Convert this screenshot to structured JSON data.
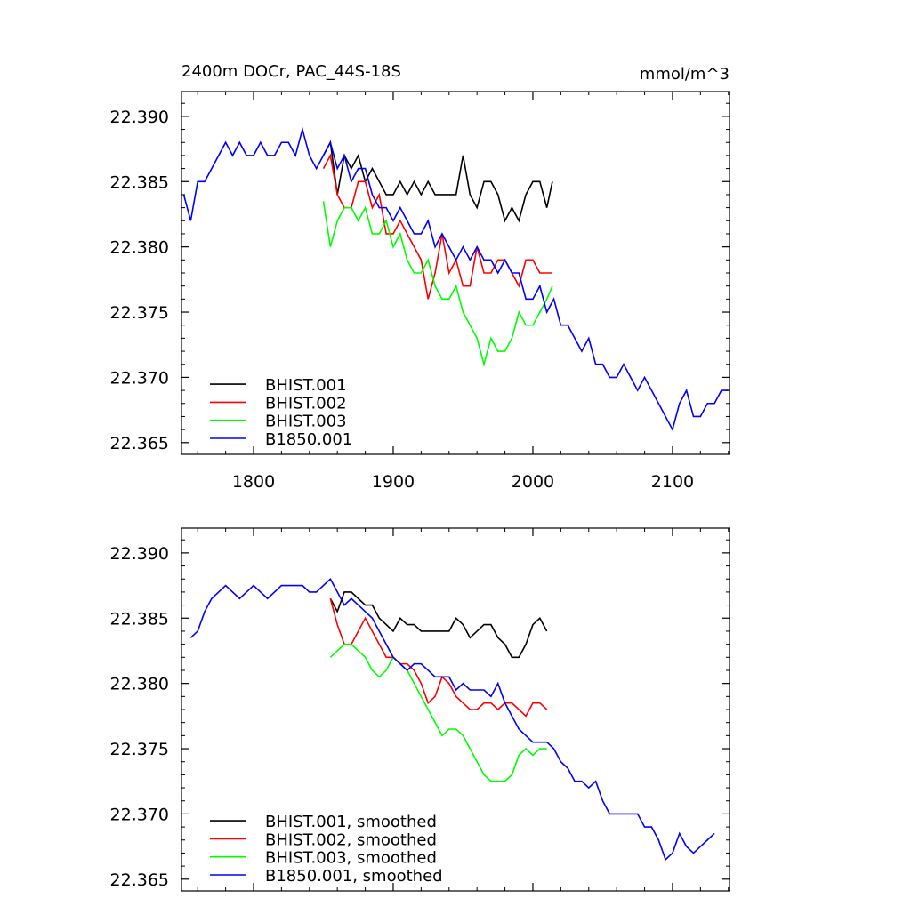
{
  "chart_data": [
    {
      "type": "line",
      "title": "2400m DOCr, PAC_44S-18S",
      "units": "mmol/m^3",
      "xlim": [
        1748.4,
        2140.8
      ],
      "xticks": [
        1800,
        1900,
        2000,
        2100
      ],
      "ylim": [
        22.3641,
        22.3919
      ],
      "yticks": [
        {
          "value": 22.365,
          "label": "22.365"
        },
        {
          "value": 22.37,
          "label": "22.370"
        },
        {
          "value": 22.375,
          "label": "22.375"
        },
        {
          "value": 22.38,
          "label": "22.380"
        },
        {
          "value": 22.385,
          "label": "22.385"
        },
        {
          "value": 22.39,
          "label": "22.390"
        }
      ],
      "legend": "lower left",
      "series": [
        {
          "name": "BHIST.001",
          "color": "#000000",
          "x": [
            1850,
            1855,
            1860,
            1865,
            1870,
            1875,
            1880,
            1885,
            1890,
            1895,
            1900,
            1905,
            1910,
            1915,
            1920,
            1925,
            1930,
            1935,
            1940,
            1945,
            1950,
            1955,
            1960,
            1965,
            1970,
            1975,
            1980,
            1985,
            1990,
            1995,
            2000,
            2005,
            2010,
            2014
          ],
          "values": [
            22.387,
            22.388,
            22.384,
            22.387,
            22.386,
            22.387,
            22.385,
            22.386,
            22.385,
            22.384,
            22.384,
            22.385,
            22.384,
            22.385,
            22.384,
            22.385,
            22.384,
            22.384,
            22.384,
            22.384,
            22.387,
            22.384,
            22.383,
            22.385,
            22.385,
            22.384,
            22.382,
            22.383,
            22.382,
            22.384,
            22.385,
            22.385,
            22.383,
            22.385
          ]
        },
        {
          "name": "BHIST.002",
          "color": "#ff0000",
          "x": [
            1850,
            1855,
            1860,
            1865,
            1870,
            1875,
            1880,
            1885,
            1890,
            1895,
            1900,
            1905,
            1910,
            1915,
            1920,
            1925,
            1930,
            1935,
            1940,
            1945,
            1950,
            1955,
            1960,
            1965,
            1970,
            1975,
            1980,
            1985,
            1990,
            1995,
            2000,
            2005,
            2010,
            2014
          ],
          "values": [
            22.386,
            22.387,
            22.384,
            22.383,
            22.383,
            22.385,
            22.385,
            22.383,
            22.384,
            22.381,
            22.381,
            22.382,
            22.381,
            22.38,
            22.379,
            22.376,
            22.378,
            22.381,
            22.378,
            22.379,
            22.377,
            22.377,
            22.38,
            22.378,
            22.378,
            22.379,
            22.379,
            22.378,
            22.377,
            22.379,
            22.379,
            22.378,
            22.378,
            22.378
          ]
        },
        {
          "name": "BHIST.003",
          "color": "#00ff00",
          "x": [
            1850,
            1855,
            1860,
            1865,
            1870,
            1875,
            1880,
            1885,
            1890,
            1895,
            1900,
            1905,
            1910,
            1915,
            1920,
            1925,
            1930,
            1935,
            1940,
            1945,
            1950,
            1955,
            1960,
            1965,
            1970,
            1975,
            1980,
            1985,
            1990,
            1995,
            2000,
            2005,
            2010,
            2014
          ],
          "values": [
            22.3835,
            22.38,
            22.382,
            22.383,
            22.383,
            22.382,
            22.383,
            22.381,
            22.381,
            22.382,
            22.38,
            22.381,
            22.379,
            22.378,
            22.378,
            22.379,
            22.377,
            22.376,
            22.376,
            22.377,
            22.375,
            22.374,
            22.373,
            22.371,
            22.373,
            22.372,
            22.372,
            22.373,
            22.375,
            22.374,
            22.374,
            22.375,
            22.376,
            22.377
          ]
        },
        {
          "name": "B1850.001",
          "color": "#0000ff",
          "x": [
            1750,
            1755,
            1760,
            1765,
            1770,
            1775,
            1780,
            1785,
            1790,
            1795,
            1800,
            1805,
            1810,
            1815,
            1820,
            1825,
            1830,
            1835,
            1840,
            1845,
            1850,
            1855,
            1860,
            1865,
            1870,
            1875,
            1880,
            1885,
            1890,
            1895,
            1900,
            1905,
            1910,
            1915,
            1920,
            1925,
            1930,
            1935,
            1940,
            1945,
            1950,
            1955,
            1960,
            1965,
            1970,
            1975,
            1980,
            1985,
            1990,
            1995,
            2000,
            2005,
            2010,
            2015,
            2020,
            2025,
            2030,
            2035,
            2040,
            2045,
            2050,
            2055,
            2060,
            2065,
            2070,
            2075,
            2080,
            2085,
            2090,
            2095,
            2100,
            2105,
            2110,
            2115,
            2120,
            2125,
            2130,
            2135,
            2140
          ],
          "values": [
            22.384,
            22.382,
            22.385,
            22.385,
            22.386,
            22.387,
            22.388,
            22.387,
            22.388,
            22.387,
            22.387,
            22.388,
            22.387,
            22.387,
            22.388,
            22.388,
            22.387,
            22.389,
            22.387,
            22.386,
            22.387,
            22.388,
            22.386,
            22.387,
            22.385,
            22.386,
            22.386,
            22.384,
            22.383,
            22.383,
            22.382,
            22.383,
            22.382,
            22.381,
            22.381,
            22.382,
            22.38,
            22.381,
            22.38,
            22.379,
            22.38,
            22.379,
            22.38,
            22.379,
            22.379,
            22.378,
            22.379,
            22.378,
            22.378,
            22.376,
            22.376,
            22.377,
            22.375,
            22.376,
            22.374,
            22.374,
            22.373,
            22.372,
            22.373,
            22.371,
            22.371,
            22.37,
            22.37,
            22.371,
            22.37,
            22.369,
            22.37,
            22.369,
            22.368,
            22.367,
            22.366,
            22.368,
            22.369,
            22.367,
            22.367,
            22.368,
            22.368,
            22.369,
            22.369
          ]
        }
      ]
    },
    {
      "type": "line",
      "xlim": [
        1748.4,
        2140.8
      ],
      "xticks": [
        1800,
        1900,
        2000,
        2100
      ],
      "xtick_labels": false,
      "ylim": [
        22.3641,
        22.3919
      ],
      "yticks": [
        {
          "value": 22.365,
          "label": "22.365"
        },
        {
          "value": 22.37,
          "label": "22.370"
        },
        {
          "value": 22.375,
          "label": "22.375"
        },
        {
          "value": 22.38,
          "label": "22.380"
        },
        {
          "value": 22.385,
          "label": "22.385"
        },
        {
          "value": 22.39,
          "label": "22.390"
        }
      ],
      "legend": "lower left",
      "series": [
        {
          "name": "BHIST.001, smoothed",
          "color": "#000000",
          "x": [
            1855,
            1860,
            1865,
            1870,
            1875,
            1880,
            1885,
            1890,
            1895,
            1900,
            1905,
            1910,
            1915,
            1920,
            1925,
            1930,
            1935,
            1940,
            1945,
            1950,
            1955,
            1960,
            1965,
            1970,
            1975,
            1980,
            1985,
            1990,
            1995,
            2000,
            2005,
            2010
          ],
          "values": [
            22.3865,
            22.3855,
            22.387,
            22.387,
            22.3865,
            22.386,
            22.386,
            22.385,
            22.3845,
            22.384,
            22.385,
            22.3845,
            22.3845,
            22.384,
            22.384,
            22.384,
            22.384,
            22.384,
            22.385,
            22.3845,
            22.3835,
            22.384,
            22.3845,
            22.3845,
            22.3835,
            22.383,
            22.382,
            22.382,
            22.383,
            22.3845,
            22.385,
            22.384
          ]
        },
        {
          "name": "BHIST.002, smoothed",
          "color": "#ff0000",
          "x": [
            1855,
            1860,
            1865,
            1870,
            1875,
            1880,
            1885,
            1890,
            1895,
            1900,
            1905,
            1910,
            1915,
            1920,
            1925,
            1930,
            1935,
            1940,
            1945,
            1950,
            1955,
            1960,
            1965,
            1970,
            1975,
            1980,
            1985,
            1990,
            1995,
            2000,
            2005,
            2010
          ],
          "values": [
            22.3865,
            22.3845,
            22.383,
            22.383,
            22.384,
            22.385,
            22.384,
            22.383,
            22.382,
            22.382,
            22.3815,
            22.3815,
            22.381,
            22.38,
            22.3785,
            22.379,
            22.3805,
            22.38,
            22.379,
            22.3785,
            22.378,
            22.378,
            22.3785,
            22.3785,
            22.378,
            22.3785,
            22.3785,
            22.378,
            22.3775,
            22.3785,
            22.3785,
            22.378
          ]
        },
        {
          "name": "BHIST.003, smoothed",
          "color": "#00ff00",
          "x": [
            1855,
            1860,
            1865,
            1870,
            1875,
            1880,
            1885,
            1890,
            1895,
            1900,
            1905,
            1910,
            1915,
            1920,
            1925,
            1930,
            1935,
            1940,
            1945,
            1950,
            1955,
            1960,
            1965,
            1970,
            1975,
            1980,
            1985,
            1990,
            1995,
            2000,
            2005,
            2010
          ],
          "values": [
            22.382,
            22.3825,
            22.383,
            22.383,
            22.3825,
            22.382,
            22.381,
            22.3805,
            22.381,
            22.382,
            22.3815,
            22.381,
            22.38,
            22.379,
            22.378,
            22.377,
            22.376,
            22.3765,
            22.3765,
            22.376,
            22.375,
            22.374,
            22.373,
            22.3725,
            22.3725,
            22.3725,
            22.373,
            22.3745,
            22.375,
            22.3745,
            22.375,
            22.375
          ]
        },
        {
          "name": "B1850.001, smoothed",
          "color": "#0000ff",
          "x": [
            1755,
            1760,
            1765,
            1770,
            1775,
            1780,
            1785,
            1790,
            1795,
            1800,
            1805,
            1810,
            1815,
            1820,
            1825,
            1830,
            1835,
            1840,
            1845,
            1850,
            1855,
            1860,
            1865,
            1870,
            1875,
            1880,
            1885,
            1890,
            1895,
            1900,
            1905,
            1910,
            1915,
            1920,
            1925,
            1930,
            1935,
            1940,
            1945,
            1950,
            1955,
            1960,
            1965,
            1970,
            1975,
            1980,
            1985,
            1990,
            1995,
            2000,
            2005,
            2010,
            2015,
            2020,
            2025,
            2030,
            2035,
            2040,
            2045,
            2050,
            2055,
            2060,
            2065,
            2070,
            2075,
            2080,
            2085,
            2090,
            2095,
            2100,
            2105,
            2110,
            2115,
            2120,
            2125,
            2130
          ],
          "values": [
            22.3835,
            22.384,
            22.3855,
            22.3865,
            22.387,
            22.3875,
            22.387,
            22.3865,
            22.387,
            22.3875,
            22.387,
            22.3865,
            22.387,
            22.3875,
            22.3875,
            22.3875,
            22.3875,
            22.387,
            22.387,
            22.3875,
            22.388,
            22.387,
            22.386,
            22.3865,
            22.386,
            22.3855,
            22.385,
            22.384,
            22.383,
            22.382,
            22.3815,
            22.381,
            22.3815,
            22.3815,
            22.381,
            22.3805,
            22.3805,
            22.3805,
            22.3795,
            22.38,
            22.3795,
            22.3795,
            22.3795,
            22.379,
            22.38,
            22.3785,
            22.3775,
            22.3765,
            22.376,
            22.3755,
            22.3755,
            22.3755,
            22.375,
            22.374,
            22.3735,
            22.3725,
            22.3725,
            22.372,
            22.3725,
            22.371,
            22.37,
            22.37,
            22.37,
            22.37,
            22.37,
            22.369,
            22.369,
            22.368,
            22.3665,
            22.367,
            22.3685,
            22.3675,
            22.367,
            22.3675,
            22.368,
            22.3685
          ]
        }
      ]
    }
  ]
}
